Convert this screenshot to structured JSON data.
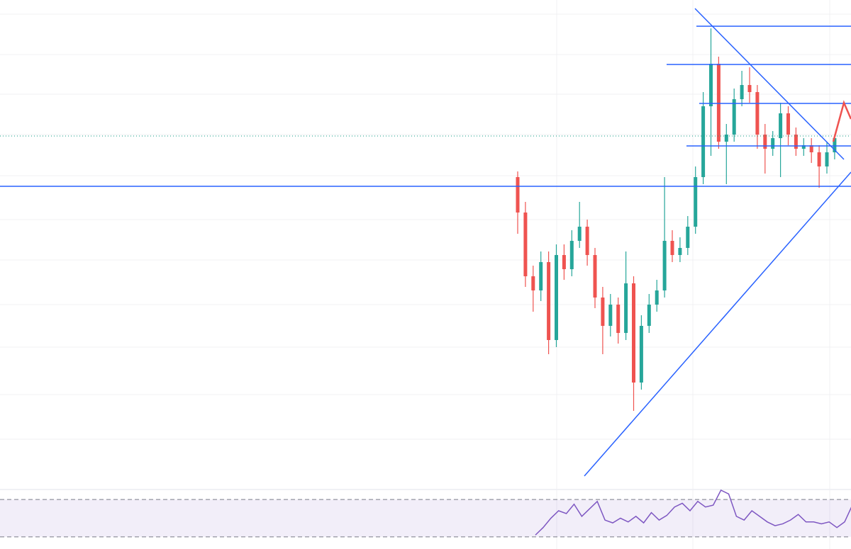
{
  "chart_data": {
    "type": "candlestick",
    "ylim": [
      0,
      690
    ],
    "open": [
      440,
      390,
      300,
      280,
      320,
      210,
      330,
      310,
      350,
      370,
      330,
      270,
      230,
      260,
      220,
      290,
      150,
      230,
      260,
      280,
      350,
      330,
      340,
      370,
      440,
      540,
      600,
      490,
      500,
      550,
      570,
      560,
      500,
      480,
      495,
      530,
      500,
      480,
      485,
      475,
      455,
      475
    ],
    "high": [
      448,
      405,
      315,
      335,
      335,
      345,
      345,
      365,
      405,
      380,
      340,
      285,
      275,
      270,
      335,
      300,
      245,
      275,
      295,
      440,
      365,
      355,
      385,
      455,
      560,
      650,
      610,
      515,
      565,
      590,
      595,
      570,
      515,
      505,
      545,
      540,
      510,
      495,
      495,
      485,
      490,
      500
    ],
    "low": [
      360,
      285,
      250,
      265,
      190,
      200,
      295,
      300,
      340,
      315,
      255,
      190,
      215,
      205,
      210,
      110,
      140,
      220,
      250,
      270,
      320,
      320,
      330,
      360,
      430,
      470,
      480,
      430,
      490,
      540,
      545,
      480,
      445,
      470,
      440,
      485,
      470,
      470,
      460,
      425,
      445,
      465
    ],
    "close": [
      390,
      300,
      280,
      320,
      210,
      330,
      310,
      350,
      370,
      330,
      270,
      230,
      260,
      220,
      290,
      150,
      230,
      260,
      280,
      350,
      330,
      340,
      370,
      440,
      540,
      600,
      490,
      500,
      550,
      570,
      560,
      500,
      480,
      495,
      530,
      500,
      480,
      485,
      475,
      455,
      475,
      495
    ],
    "up_color": "#26a69a",
    "down_color": "#ef5350",
    "rsi": {
      "values": [
        32,
        40,
        50,
        58,
        55,
        65,
        52,
        60,
        68,
        48,
        45,
        50,
        46,
        52,
        45,
        56,
        48,
        53,
        62,
        66,
        58,
        68,
        62,
        64,
        80,
        76,
        52,
        48,
        58,
        52,
        46,
        42,
        44,
        48,
        54,
        46,
        46,
        44,
        46,
        40,
        46,
        64
      ],
      "ylim": [
        17,
        80
      ],
      "bands": [
        30,
        70
      ],
      "color": "#7e57c2"
    }
  }
}
